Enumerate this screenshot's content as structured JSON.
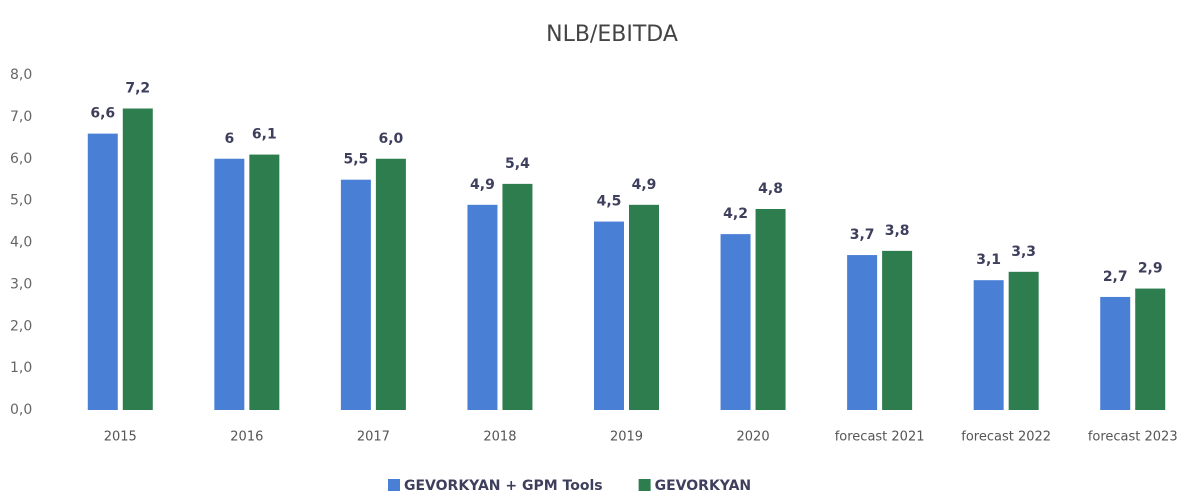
{
  "chart_data": {
    "type": "bar",
    "title": "NLB/EBITDA",
    "categories": [
      "2015",
      "2016",
      "2017",
      "2018",
      "2019",
      "2020",
      "forecast 2021",
      "forecast 2022",
      "forecast 2023"
    ],
    "series": [
      {
        "name": "GEVORKYAN + GPM Tools",
        "color": "#4a7fd6",
        "values": [
          6.6,
          6,
          5.5,
          4.9,
          4.5,
          4.2,
          3.7,
          3.1,
          2.7
        ],
        "value_labels": [
          "6,6",
          "6",
          "5,5",
          "4,9",
          "4,5",
          "4,2",
          "3,7",
          "3,1",
          "2,7"
        ]
      },
      {
        "name": "GEVORKYAN",
        "color": "#2e7d4f",
        "values": [
          7.2,
          6.1,
          6.0,
          5.4,
          4.9,
          4.8,
          3.8,
          3.3,
          2.9
        ],
        "value_labels": [
          "7,2",
          "6,1",
          "6,0",
          "5,4",
          "4,9",
          "4,8",
          "3,8",
          "3,3",
          "2,9"
        ]
      }
    ],
    "ylim": [
      0,
      8
    ],
    "yticks": [
      {
        "value": 0,
        "label": "0,0"
      },
      {
        "value": 1,
        "label": "1,0"
      },
      {
        "value": 2,
        "label": "2,0"
      },
      {
        "value": 3,
        "label": "3,0"
      },
      {
        "value": 4,
        "label": "4,0"
      },
      {
        "value": 5,
        "label": "5,0"
      },
      {
        "value": 6,
        "label": "6,0"
      },
      {
        "value": 7,
        "label": "7,0"
      },
      {
        "value": 8,
        "label": "8,0"
      }
    ],
    "grid": false,
    "legend": "bottom"
  }
}
